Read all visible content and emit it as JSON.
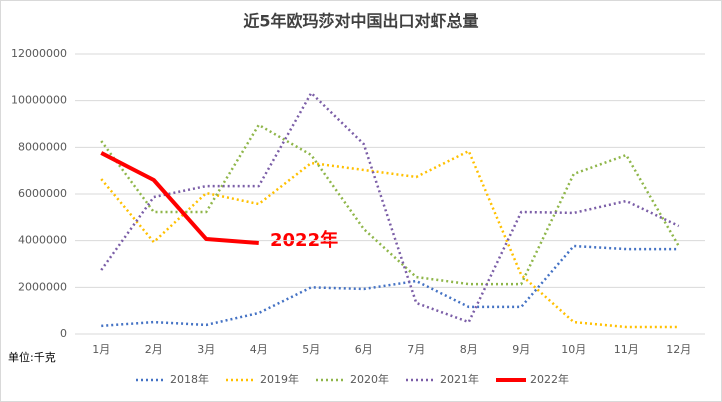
{
  "chart_data": {
    "type": "line",
    "title": "近5年欧玛莎对中国出口对虾总量",
    "unit_label": "单位:千克",
    "annotation": "2022年",
    "categories": [
      "1月",
      "2月",
      "3月",
      "4月",
      "5月",
      "6月",
      "7月",
      "8月",
      "9月",
      "10月",
      "11月",
      "12月"
    ],
    "series": [
      {
        "name": "2018年",
        "color": "#4472c4",
        "style": "dotted",
        "values": [
          350000,
          510000,
          390000,
          900000,
          2000000,
          1930000,
          2270000,
          1160000,
          1160000,
          3770000,
          3640000,
          3640000
        ]
      },
      {
        "name": "2019年",
        "color": "#ffc000",
        "style": "dotted",
        "values": [
          6640000,
          3940000,
          6040000,
          5570000,
          7330000,
          7030000,
          6730000,
          7840000,
          2530000,
          510000,
          300000,
          300000
        ]
      },
      {
        "name": "2020年",
        "color": "#8fb64a",
        "style": "dotted",
        "values": [
          8270000,
          5230000,
          5230000,
          8960000,
          7670000,
          4500000,
          2440000,
          2140000,
          2140000,
          6860000,
          7670000,
          3770000
        ]
      },
      {
        "name": "2021年",
        "color": "#7b5ea7",
        "style": "dotted",
        "values": [
          2740000,
          5870000,
          6340000,
          6340000,
          10330000,
          8140000,
          1330000,
          510000,
          5230000,
          5190000,
          5700000,
          4630000
        ]
      },
      {
        "name": "2022年",
        "color": "#ff0000",
        "style": "solid",
        "values": [
          7760000,
          6600000,
          4070000,
          3900000,
          null,
          null,
          null,
          null,
          null,
          null,
          null,
          null
        ]
      }
    ],
    "ylim": [
      0,
      12000000
    ],
    "yticks": [
      0,
      2000000,
      4000000,
      6000000,
      8000000,
      10000000,
      12000000
    ],
    "grid": true,
    "legend": "bottom"
  }
}
